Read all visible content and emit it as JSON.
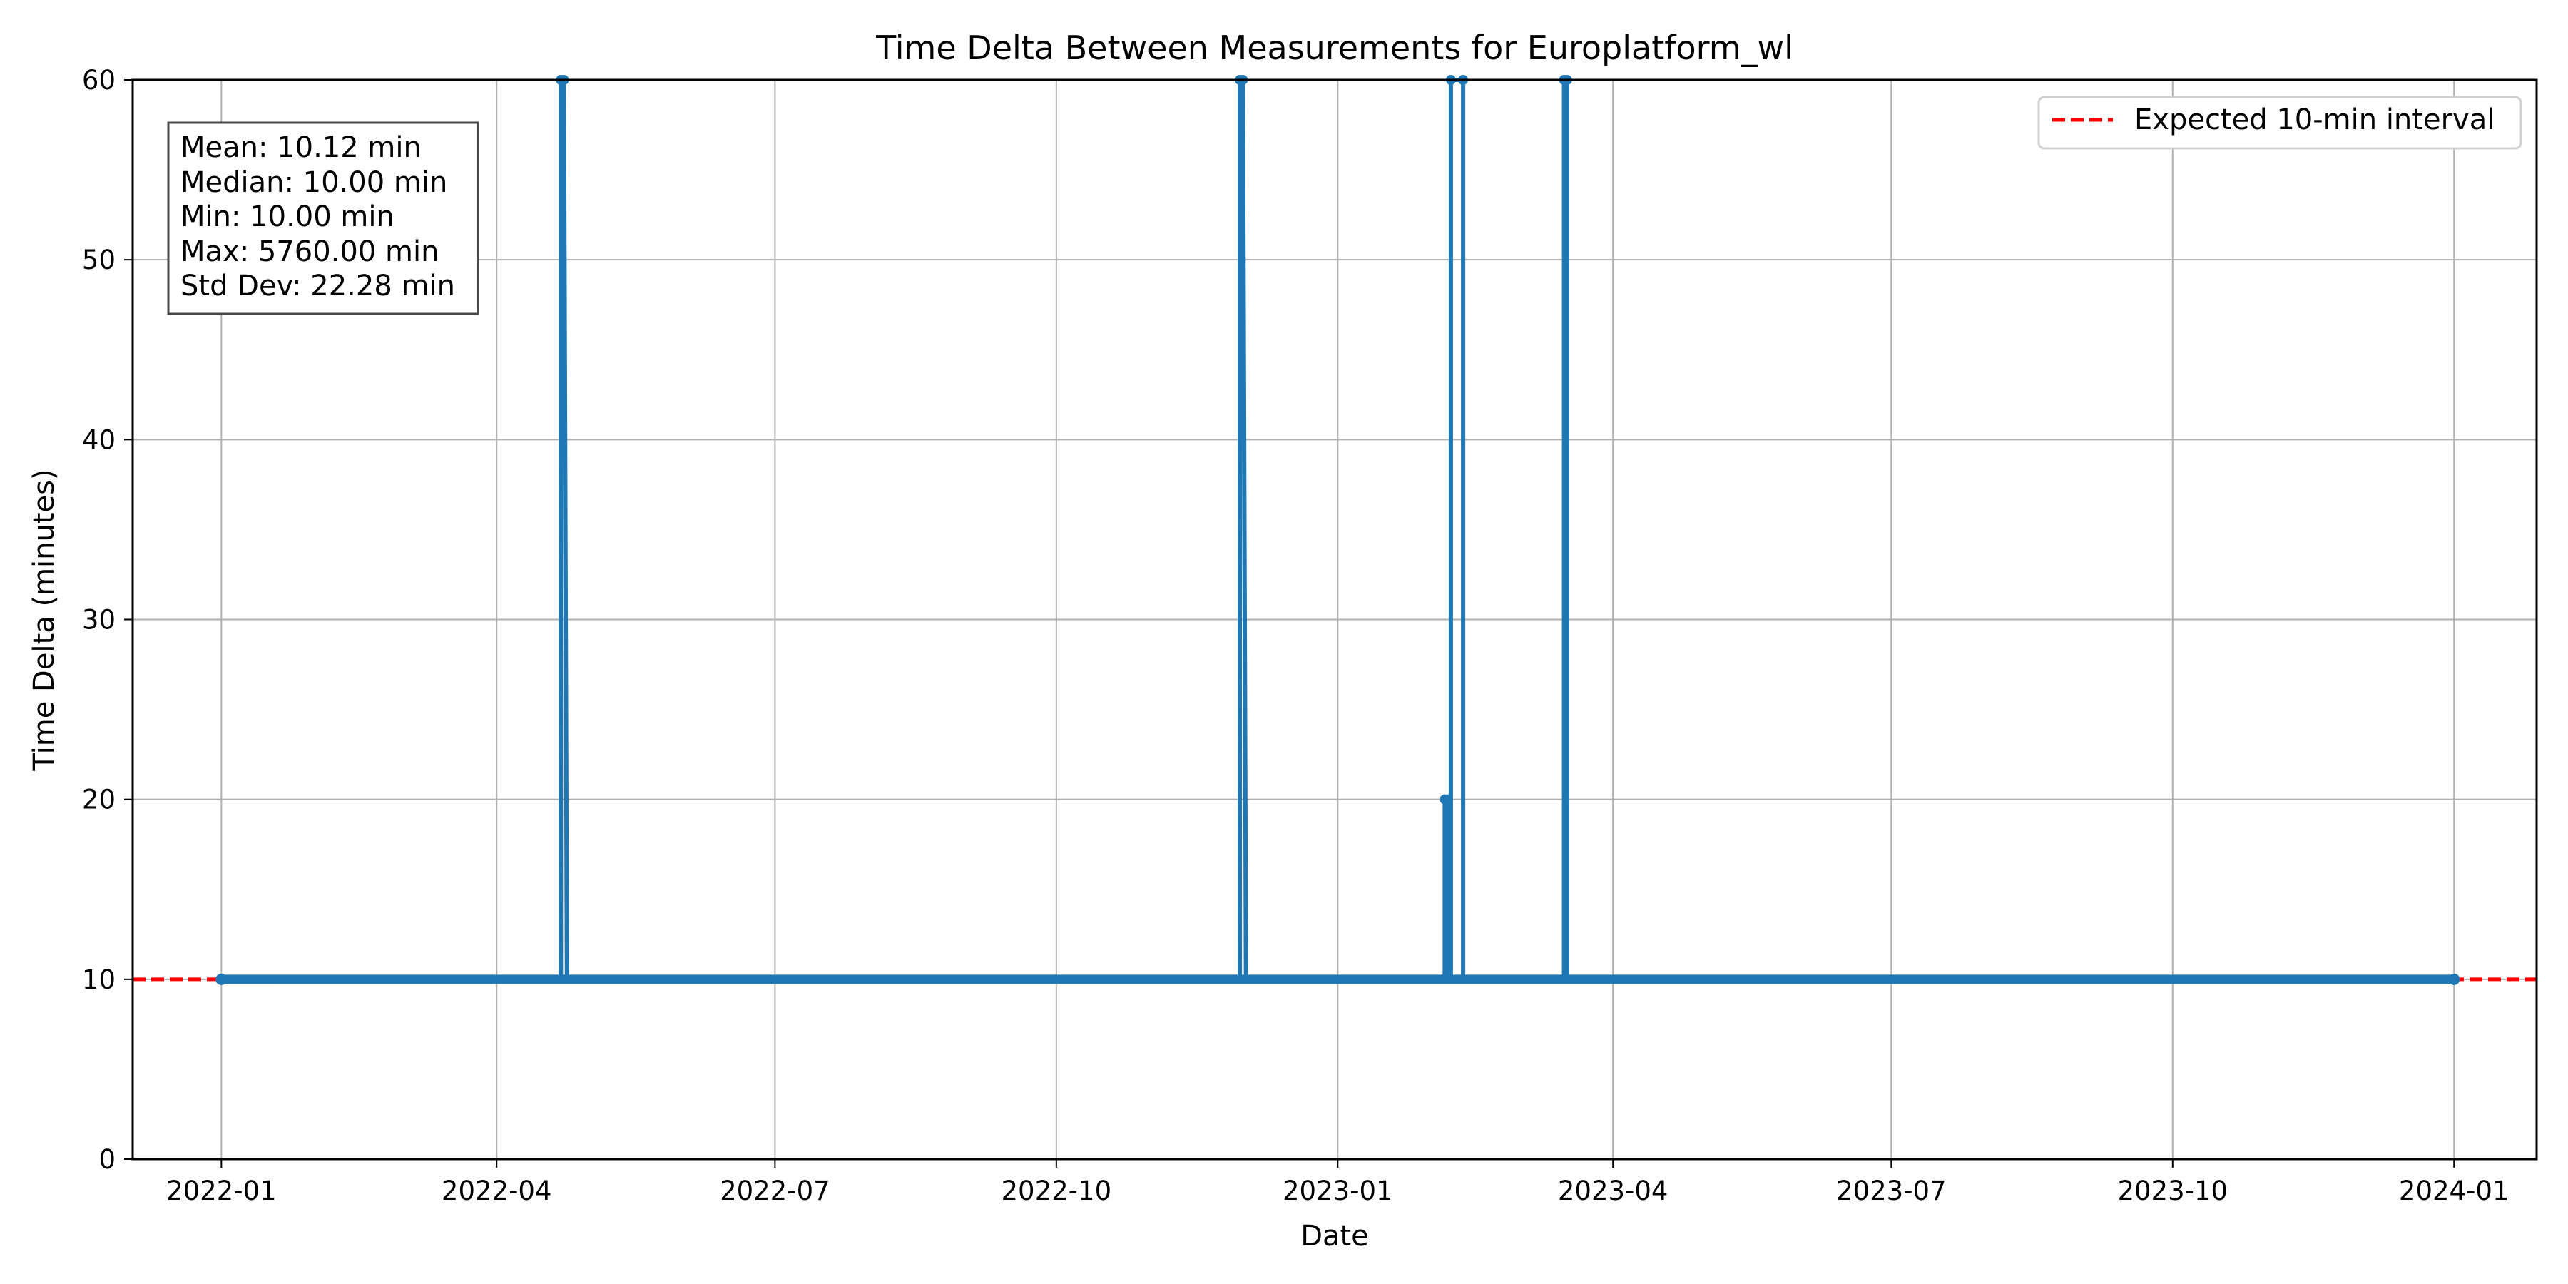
{
  "chart_data": {
    "type": "line",
    "title": "Time Delta Between Measurements for Europlatform_wl",
    "xlabel": "Date",
    "ylabel": "Time Delta (minutes)",
    "xlim": [
      "2021-12-03",
      "2024-01-28"
    ],
    "ylim": [
      0,
      60
    ],
    "grid": true,
    "x_ticks": [
      "2022-01",
      "2022-04",
      "2022-07",
      "2022-10",
      "2023-01",
      "2023-04",
      "2023-07",
      "2023-10",
      "2024-01"
    ],
    "y_ticks": [
      0,
      10,
      20,
      30,
      40,
      50,
      60
    ],
    "series": [
      {
        "color": "#1f77b4",
        "marker": "circle",
        "points": [
          {
            "x": "2022-01-01",
            "y": 10
          },
          {
            "x": "2022-04-22",
            "y": 10
          },
          {
            "x": "2022-04-22",
            "y": 60
          },
          {
            "x": "2022-04-23",
            "y": 60
          },
          {
            "x": "2022-04-24",
            "y": 10
          },
          {
            "x": "2022-11-30",
            "y": 10
          },
          {
            "x": "2022-11-30",
            "y": 60
          },
          {
            "x": "2022-12-01",
            "y": 60
          },
          {
            "x": "2022-12-02",
            "y": 10
          },
          {
            "x": "2023-02-05",
            "y": 10
          },
          {
            "x": "2023-02-05",
            "y": 20
          },
          {
            "x": "2023-02-06",
            "y": 20
          },
          {
            "x": "2023-02-06",
            "y": 10
          },
          {
            "x": "2023-02-07",
            "y": 10
          },
          {
            "x": "2023-02-07",
            "y": 60
          },
          {
            "x": "2023-02-11",
            "y": 60
          },
          {
            "x": "2023-02-11",
            "y": 10
          },
          {
            "x": "2023-03-16",
            "y": 10
          },
          {
            "x": "2023-03-16",
            "y": 60
          },
          {
            "x": "2023-03-17",
            "y": 60
          },
          {
            "x": "2023-03-17",
            "y": 10
          },
          {
            "x": "2024-01-01",
            "y": 10
          }
        ]
      }
    ],
    "reference_line": {
      "y": 10,
      "color": "#ff0000",
      "style": "dashed",
      "label": "Expected 10-min interval"
    },
    "legend": {
      "placement": "top-right",
      "entries": [
        "Expected 10-min interval"
      ]
    },
    "stats_box": {
      "placement": "top-left",
      "lines": [
        "Mean: 10.12 min",
        "Median: 10.00 min",
        "Min: 10.00 min",
        "Max: 5760.00 min",
        "Std Dev: 22.28 min"
      ]
    }
  }
}
